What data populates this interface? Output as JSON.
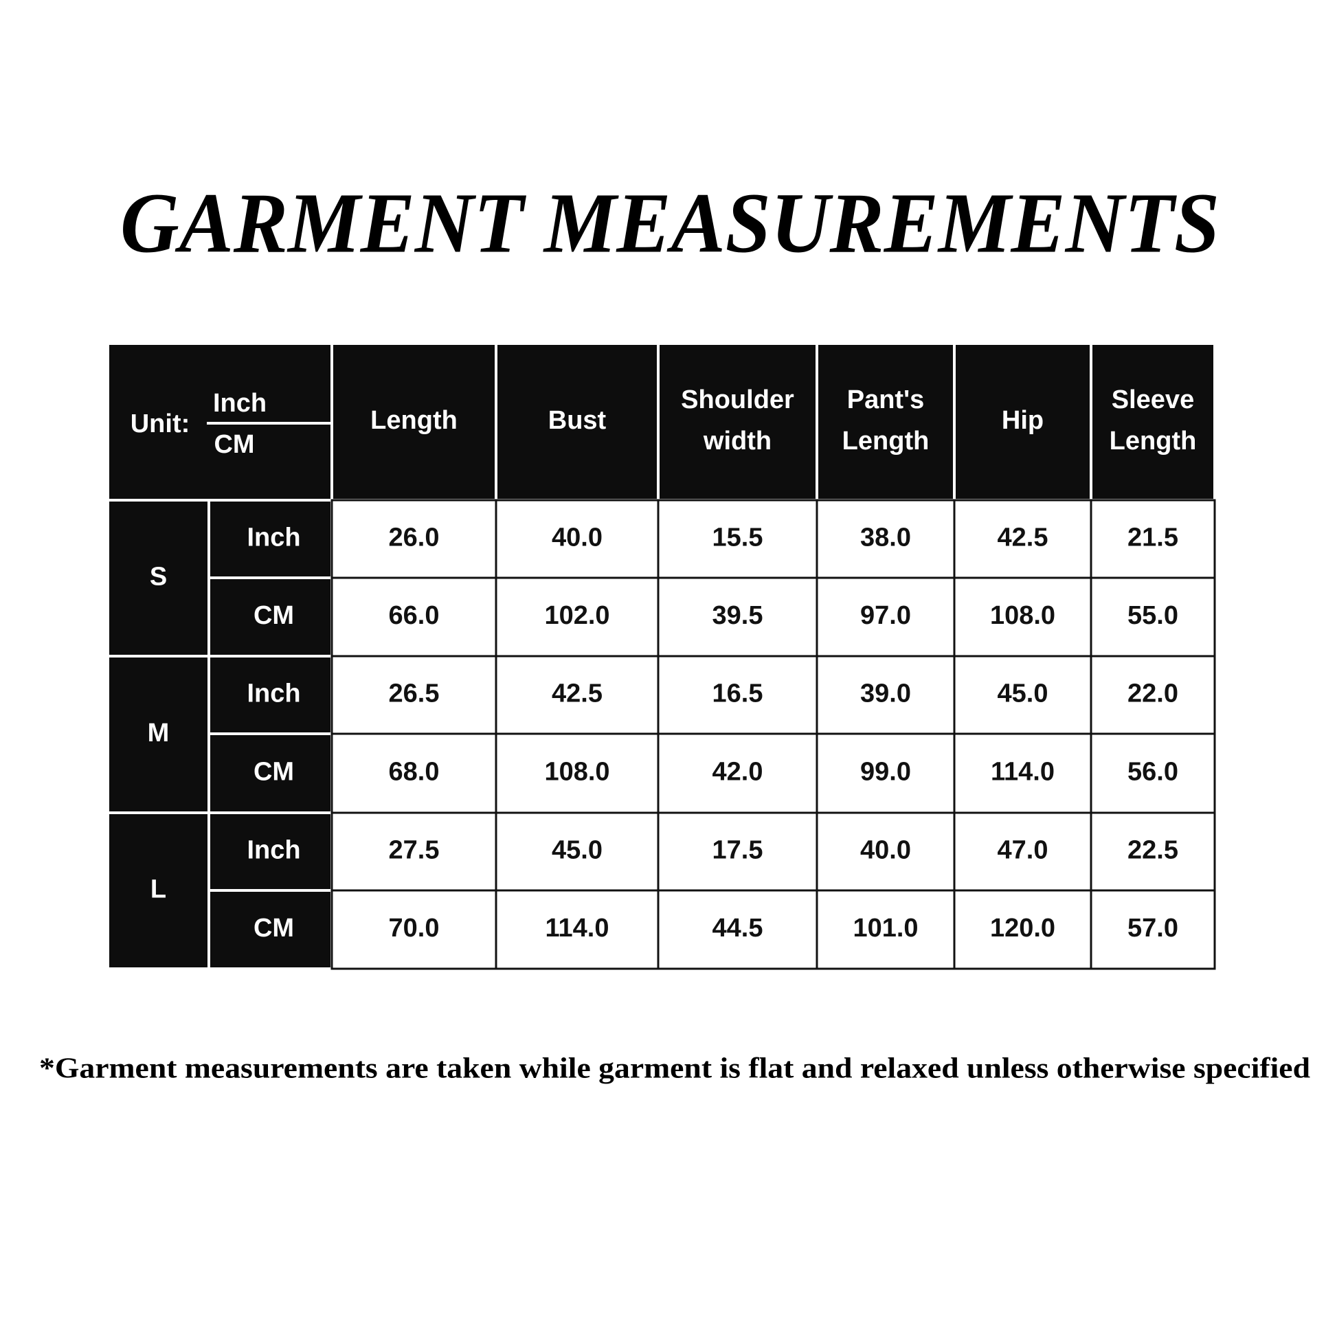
{
  "header": {
    "title": "GARMENT MEASUREMENTS"
  },
  "table": {
    "unit_label": "Unit:",
    "unit_top": "Inch",
    "unit_bottom": "CM",
    "columns": [
      "Length",
      "Bust",
      "Shoulder width",
      "Pant's Length",
      "Hip",
      "Sleeve Length"
    ],
    "sizes": [
      {
        "size": "S",
        "rows": [
          {
            "unit": "Inch",
            "values": [
              "26.0",
              "40.0",
              "15.5",
              "38.0",
              "42.5",
              "21.5"
            ]
          },
          {
            "unit": "CM",
            "values": [
              "66.0",
              "102.0",
              "39.5",
              "97.0",
              "108.0",
              "55.0"
            ]
          }
        ]
      },
      {
        "size": "M",
        "rows": [
          {
            "unit": "Inch",
            "values": [
              "26.5",
              "42.5",
              "16.5",
              "39.0",
              "45.0",
              "22.0"
            ]
          },
          {
            "unit": "CM",
            "values": [
              "68.0",
              "108.0",
              "42.0",
              "99.0",
              "114.0",
              "56.0"
            ]
          }
        ]
      },
      {
        "size": "L",
        "rows": [
          {
            "unit": "Inch",
            "values": [
              "27.5",
              "45.0",
              "17.5",
              "40.0",
              "47.0",
              "22.5"
            ]
          },
          {
            "unit": "CM",
            "values": [
              "70.0",
              "114.0",
              "44.5",
              "101.0",
              "120.0",
              "57.0"
            ]
          }
        ]
      }
    ]
  },
  "footnote": "*Garment measurements are taken while garment is flat and relaxed unless otherwise specified"
}
